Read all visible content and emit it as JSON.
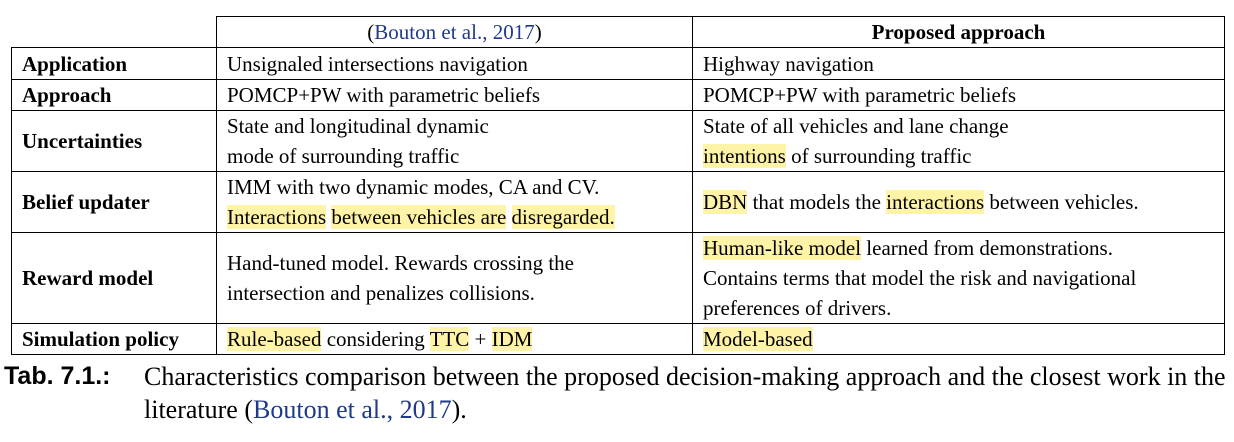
{
  "table": {
    "header": {
      "col1_cite": "Bouton et al., 2017",
      "col1_open": "(",
      "col1_close": ")",
      "col2": "Proposed approach"
    },
    "rows": {
      "application": {
        "label": "Application",
        "bouton": "Unsignaled intersections navigation",
        "proposed": "Highway navigation"
      },
      "approach": {
        "label": "Approach",
        "bouton": "POMCP+PW with parametric beliefs",
        "proposed": "POMCP+PW with parametric beliefs"
      },
      "uncertainties": {
        "label": "Uncertainties",
        "bouton_line1": "State and longitudinal dynamic",
        "bouton_line2": "mode of surrounding traffic",
        "proposed_line1": "State of all vehicles and lane change",
        "proposed_hl": "intentions",
        "proposed_line2_rest": " of surrounding traffic"
      },
      "belief_updater": {
        "label": "Belief updater",
        "bouton_line1": "IMM with two dynamic modes, CA and CV.",
        "bouton_hl1": "Interactions",
        "bouton_hl2": "between vehicles are",
        "bouton_hl3": "disregarded.",
        "proposed_hl1": "DBN",
        "proposed_mid": " that models the ",
        "proposed_hl2": "interactions",
        "proposed_end": " between vehicles."
      },
      "reward_model": {
        "label": "Reward model",
        "bouton_line1": "Hand-tuned model. Rewards crossing the",
        "bouton_line2": "intersection and penalizes collisions.",
        "proposed_hl": "Human-like model",
        "proposed_line1_rest": " learned from demonstrations.",
        "proposed_line2": "Contains terms that model the risk and navigational",
        "proposed_line3": "preferences of drivers."
      },
      "simulation_policy": {
        "label": "Simulation policy",
        "bouton_hl1": "Rule-based",
        "bouton_mid": " considering ",
        "bouton_hl2": "TTC",
        "bouton_plus": " + ",
        "bouton_hl3": "IDM",
        "proposed_hl": "Model-based"
      }
    }
  },
  "caption": {
    "label": "Tab. 7.1.:",
    "text_before": "Characteristics comparison between the proposed decision-making approach and the closest work in the literature (",
    "cite": "Bouton et al., 2017",
    "text_after": ")."
  },
  "colors": {
    "highlight": "#fff3a8",
    "citation": "#1f3a8a"
  }
}
